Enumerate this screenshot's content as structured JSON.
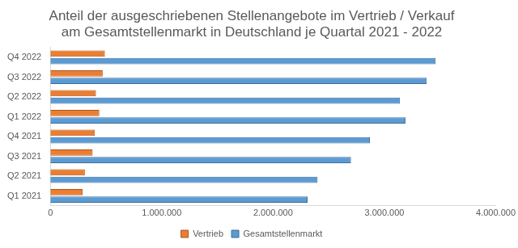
{
  "chart_data": {
    "type": "bar",
    "orientation": "horizontal",
    "title": [
      "Anteil der ausgeschriebenen Stellenangebote im Vertrieb / Verkauf",
      "am Gesamtstellenmarkt in Deutschland je Quartal 2021 - 2022"
    ],
    "categories": [
      "Q4 2022",
      "Q3 2022",
      "Q2 2022",
      "Q1 2022",
      "Q4 2021",
      "Q3 2021",
      "Q2 2021",
      "Q1 2021"
    ],
    "series": [
      {
        "name": "Vertrieb",
        "color": "#ed7d31",
        "values": [
          490000,
          470000,
          410000,
          440000,
          400000,
          380000,
          310000,
          290000
        ]
      },
      {
        "name": "Gesamtstellenmarkt",
        "color": "#5b9bd5",
        "values": [
          3460000,
          3380000,
          3140000,
          3190000,
          2870000,
          2700000,
          2400000,
          2310000
        ]
      }
    ],
    "xlim": [
      0,
      4000000
    ],
    "xticks": [
      0,
      {
        "value": 1000000,
        "label": "1.000.000"
      },
      {
        "value": 2000000,
        "label": "2.000.000"
      },
      {
        "value": 3000000,
        "label": "3.000.000"
      },
      {
        "value": 4000000,
        "label": "4.000.000"
      }
    ],
    "grid": false,
    "legend": "bottom"
  }
}
